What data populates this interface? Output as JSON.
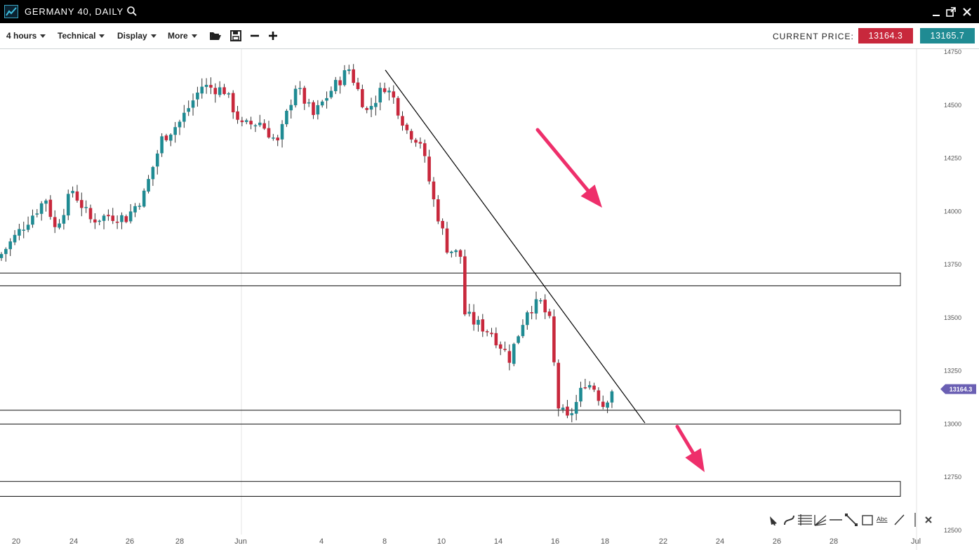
{
  "window": {
    "title": "GERMANY 40, DAILY",
    "icons": [
      "chart-logo-icon",
      "search-icon",
      "minimize-icon",
      "popout-icon",
      "close-icon"
    ]
  },
  "toolbar": {
    "timeframe": "4 hours",
    "technical": "Technical",
    "display": "Display",
    "more": "More",
    "icons": [
      "folder-open-icon",
      "save-icon",
      "zoom-out-icon",
      "zoom-in-icon"
    ]
  },
  "price": {
    "label": "CURRENT PRICE:",
    "sell": "13164.3",
    "buy": "13165.7",
    "sell_color": "#c8283c",
    "buy_color": "#1f8b93"
  },
  "chart_data": {
    "type": "candlestick",
    "instrument": "GERMANY 40",
    "y_ticks": [
      "14750",
      "14500",
      "14250",
      "14000",
      "13750",
      "13500",
      "13250",
      "13000",
      "12750",
      "12500"
    ],
    "ylim": [
      12500,
      14750
    ],
    "x_ticks": [
      "20",
      "24",
      "26",
      "28",
      "Jun",
      "4",
      "8",
      "10",
      "14",
      "16",
      "18",
      "22",
      "24",
      "26",
      "28",
      "Jul"
    ],
    "current_price_tag": "13164.3",
    "current_price_tag_color": "#6a5fb3",
    "up_color": "#1f8b93",
    "down_color": "#c8283c",
    "zones": [
      {
        "low": 13650,
        "high": 13710
      },
      {
        "low": 13000,
        "high": 13065
      },
      {
        "low": 12660,
        "high": 12730
      }
    ],
    "trendline": {
      "from_price": 14665,
      "to_price": 13005,
      "color": "#000000"
    },
    "arrows": [
      {
        "direction": "down",
        "color": "#ee2f6b"
      },
      {
        "direction": "down",
        "color": "#ee2f6b"
      }
    ],
    "candle_price_keypoints": [
      [
        0,
        13800
      ],
      [
        3,
        13880
      ],
      [
        6,
        13960
      ],
      [
        10,
        14060
      ],
      [
        12,
        13920
      ],
      [
        16,
        14100
      ],
      [
        20,
        13960
      ],
      [
        24,
        13980
      ],
      [
        28,
        13970
      ],
      [
        32,
        14080
      ],
      [
        36,
        14340
      ],
      [
        40,
        14420
      ],
      [
        45,
        14590
      ],
      [
        50,
        14570
      ],
      [
        54,
        14400
      ],
      [
        58,
        14420
      ],
      [
        62,
        14320
      ],
      [
        66,
        14590
      ],
      [
        70,
        14450
      ],
      [
        74,
        14570
      ],
      [
        78,
        14670
      ],
      [
        82,
        14470
      ],
      [
        86,
        14590
      ],
      [
        88,
        14530
      ],
      [
        91,
        14380
      ],
      [
        94,
        14330
      ],
      [
        97,
        14050
      ],
      [
        100,
        13830
      ],
      [
        103,
        13790
      ],
      [
        104,
        13520
      ],
      [
        106,
        13480
      ],
      [
        110,
        13430
      ],
      [
        114,
        13310
      ],
      [
        118,
        13540
      ],
      [
        121,
        13570
      ],
      [
        123,
        13480
      ],
      [
        125,
        13080
      ],
      [
        127,
        13020
      ],
      [
        129,
        13100
      ],
      [
        131,
        13200
      ],
      [
        133,
        13170
      ],
      [
        135,
        13090
      ],
      [
        137,
        13164
      ]
    ]
  },
  "drawing_tools": [
    "cursor-icon",
    "curve-icon",
    "fibonacci-icon",
    "fan-icon",
    "horizontal-line-icon",
    "trend-line-icon",
    "rectangle-icon",
    "text-icon",
    "ray-icon",
    "vertical-line-icon",
    "delete-icon"
  ],
  "drawing_text_tool_label": "Abc"
}
